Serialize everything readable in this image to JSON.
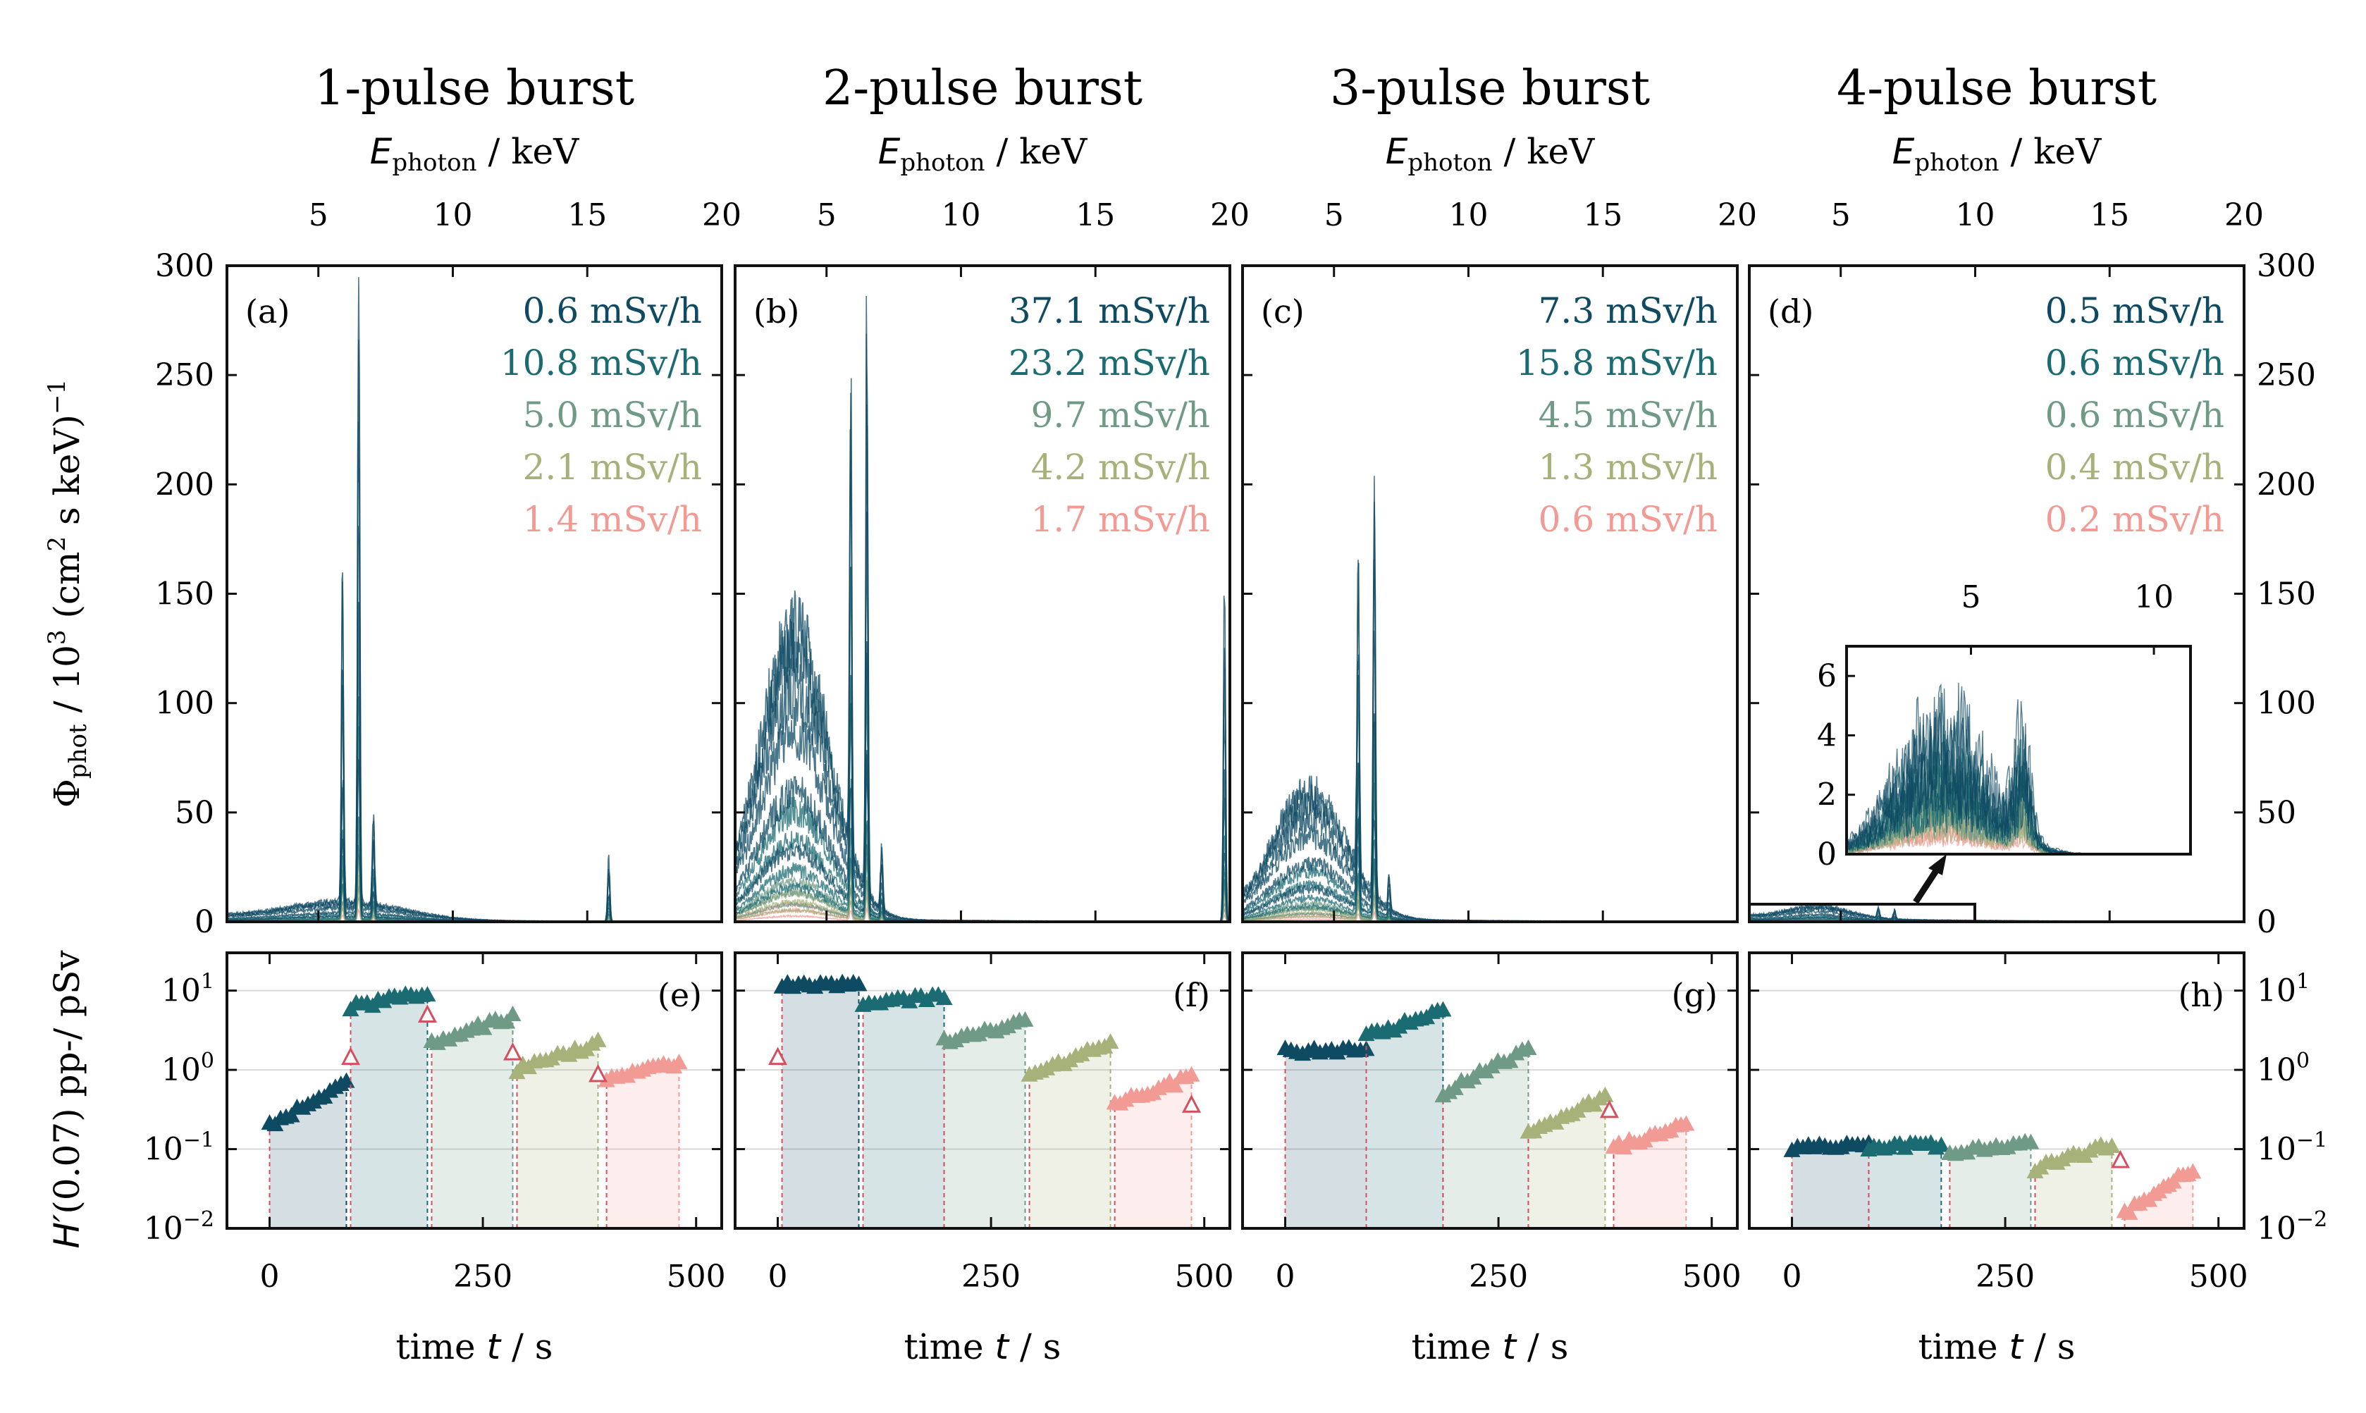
{
  "titles": [
    "1-pulse burst",
    "2-pulse burst",
    "3-pulse burst",
    "4-pulse burst"
  ],
  "top_axis_label": {
    "main": "E",
    "sub": "photon",
    "unit": " / keV"
  },
  "left_axis_label_spectrum": {
    "main": "Φ",
    "sub": "phot",
    "rest1": " / 10",
    "sup": "3",
    "rest2": " (cm",
    "sup2": "2",
    "rest3": " s keV)",
    "sup3": "−1"
  },
  "left_axis_label_dose": {
    "main": "H′",
    "rest": "(0.07) pp-/ pSv"
  },
  "bottom_axis_label": {
    "pre": "time ",
    "var": "t",
    "post": " / s"
  },
  "panel_letters_top": [
    "(a)",
    "(b)",
    "(c)",
    "(d)"
  ],
  "panel_letters_bottom": [
    "(e)",
    "(f)",
    "(g)",
    "(h)"
  ],
  "series_colors": [
    "#0f4a63",
    "#1b6b72",
    "#6e9a86",
    "#a6b27a",
    "#f29b94"
  ],
  "marker_color": "#d4505f",
  "inset": {
    "x_ticks": [
      "5",
      "10"
    ],
    "y_ticks": [
      "0",
      "2",
      "4",
      "6"
    ]
  },
  "chart_data": [
    {
      "type": "line",
      "panel": "a",
      "title": "1-pulse burst",
      "xlabel": "E_photon / keV",
      "ylabel": "Φ_phot / 10^3 (cm^2 s keV)^-1",
      "xlim": [
        1.6,
        20
      ],
      "ylim": [
        0,
        300
      ],
      "x_ticks": [
        "5",
        "10",
        "15",
        "20"
      ],
      "y_ticks": [
        "0",
        "50",
        "100",
        "150",
        "200",
        "250",
        "300"
      ],
      "dose_rates": [
        "0.6 mSv/h",
        "10.8 mSv/h",
        "5.0 mSv/h",
        "2.1 mSv/h",
        "1.4 mSv/h"
      ],
      "peaks": [
        {
          "x": 5.9,
          "y": 143
        },
        {
          "x": 6.5,
          "y": 275
        },
        {
          "x": 7.05,
          "y": 43
        },
        {
          "x": 15.8,
          "y": 28
        }
      ],
      "continuum": {
        "level": 8,
        "center": 6.0,
        "width": 3.0
      }
    },
    {
      "type": "line",
      "panel": "b",
      "title": "2-pulse burst",
      "xlabel": "E_photon / keV",
      "xlim": [
        1.6,
        20
      ],
      "ylim": [
        0,
        300
      ],
      "x_ticks": [
        "5",
        "10",
        "15",
        "20"
      ],
      "dose_rates": [
        "37.1 mSv/h",
        "23.2 mSv/h",
        "9.7 mSv/h",
        "4.2 mSv/h",
        "1.7 mSv/h"
      ],
      "peaks": [
        {
          "x": 5.9,
          "y": 207
        },
        {
          "x": 6.5,
          "y": 270
        },
        {
          "x": 7.05,
          "y": 30
        },
        {
          "x": 19.8,
          "y": 145
        }
      ],
      "continuum": {
        "level": 130,
        "center": 3.8,
        "width": 1.8
      }
    },
    {
      "type": "line",
      "panel": "c",
      "title": "3-pulse burst",
      "xlabel": "E_photon / keV",
      "xlim": [
        1.6,
        20
      ],
      "ylim": [
        0,
        300
      ],
      "x_ticks": [
        "5",
        "10",
        "15",
        "20"
      ],
      "dose_rates": [
        "7.3 mSv/h",
        "15.8 mSv/h",
        "4.5 mSv/h",
        "1.3 mSv/h",
        "0.6 mSv/h"
      ],
      "peaks": [
        {
          "x": 5.9,
          "y": 143
        },
        {
          "x": 6.5,
          "y": 197
        },
        {
          "x": 7.05,
          "y": 15
        }
      ],
      "continuum": {
        "level": 58,
        "center": 4.1,
        "width": 1.9
      }
    },
    {
      "type": "line",
      "panel": "d",
      "title": "4-pulse burst",
      "xlabel": "E_photon / keV",
      "xlim": [
        1.6,
        20
      ],
      "ylim": [
        0,
        300
      ],
      "x_ticks": [
        "5",
        "10",
        "15",
        "20"
      ],
      "y_ticks": [
        "0",
        "50",
        "100",
        "150",
        "200",
        "250",
        "300"
      ],
      "dose_rates": [
        "0.5 mSv/h",
        "0.6 mSv/h",
        "0.6 mSv/h",
        "0.4 mSv/h",
        "0.2 mSv/h"
      ],
      "peaks": [
        {
          "x": 6.4,
          "y": 4.5
        },
        {
          "x": 7.0,
          "y": 4.2
        }
      ],
      "continuum": {
        "level": 5.5,
        "center": 4.2,
        "width": 1.6
      },
      "inset": {
        "xlim": [
          1.6,
          11
        ],
        "ylim": [
          0,
          7
        ]
      }
    },
    {
      "type": "scatter",
      "panel": "e",
      "xlabel": "time t / s",
      "ylabel": "H′(0.07) pp-/ pSv",
      "xlim": [
        -50,
        530
      ],
      "yscale": "log",
      "ylim": [
        0.01,
        30
      ],
      "x_ticks": [
        "0",
        "250",
        "500"
      ],
      "y_ticks": [
        "10−2",
        "10−1",
        "100",
        "101"
      ],
      "segments": [
        {
          "t0": 0,
          "t1": 90,
          "y0": 0.2,
          "y1": 0.65
        },
        {
          "t0": 95,
          "t1": 185,
          "y0": 6,
          "y1": 9.5
        },
        {
          "t0": 190,
          "t1": 285,
          "y0": 2.2,
          "y1": 4.5
        },
        {
          "t0": 290,
          "t1": 385,
          "y0": 1.0,
          "y1": 2.1
        },
        {
          "t0": 395,
          "t1": 480,
          "y0": 0.7,
          "y1": 1.2
        }
      ],
      "open_markers": [
        {
          "t": 95,
          "y": 1.4
        },
        {
          "t": 185,
          "y": 4.8
        },
        {
          "t": 285,
          "y": 1.6
        },
        {
          "t": 385,
          "y": 0.85
        }
      ]
    },
    {
      "type": "scatter",
      "panel": "f",
      "xlabel": "time t / s",
      "xlim": [
        -50,
        530
      ],
      "yscale": "log",
      "ylim": [
        0.01,
        30
      ],
      "x_ticks": [
        "0",
        "250",
        "500"
      ],
      "segments": [
        {
          "t0": 5,
          "t1": 95,
          "y0": 11,
          "y1": 12
        },
        {
          "t0": 100,
          "t1": 195,
          "y0": 6.5,
          "y1": 8.5
        },
        {
          "t0": 195,
          "t1": 290,
          "y0": 2.2,
          "y1": 4.0
        },
        {
          "t0": 295,
          "t1": 390,
          "y0": 0.8,
          "y1": 2.1
        },
        {
          "t0": 395,
          "t1": 485,
          "y0": 0.35,
          "y1": 0.8
        }
      ],
      "open_markers": [
        {
          "t": 0,
          "y": 1.4
        },
        {
          "t": 485,
          "y": 0.35
        }
      ]
    },
    {
      "type": "scatter",
      "panel": "g",
      "xlabel": "time t / s",
      "xlim": [
        -50,
        530
      ],
      "yscale": "log",
      "ylim": [
        0.01,
        30
      ],
      "x_ticks": [
        "0",
        "250",
        "500"
      ],
      "segments": [
        {
          "t0": 0,
          "t1": 95,
          "y0": 1.7,
          "y1": 1.7
        },
        {
          "t0": 95,
          "t1": 185,
          "y0": 2.6,
          "y1": 5.2
        },
        {
          "t0": 185,
          "t1": 285,
          "y0": 0.5,
          "y1": 1.8
        },
        {
          "t0": 285,
          "t1": 375,
          "y0": 0.15,
          "y1": 0.45
        },
        {
          "t0": 385,
          "t1": 470,
          "y0": 0.1,
          "y1": 0.2
        }
      ],
      "open_markers": [
        {
          "t": 380,
          "y": 0.3
        }
      ]
    },
    {
      "type": "scatter",
      "panel": "h",
      "xlabel": "time t / s",
      "xlim": [
        -50,
        530
      ],
      "yscale": "log",
      "ylim": [
        0.01,
        30
      ],
      "x_ticks": [
        "0",
        "250",
        "500"
      ],
      "y_ticks": [
        "10−2",
        "10−1",
        "100",
        "101"
      ],
      "segments": [
        {
          "t0": 0,
          "t1": 90,
          "y0": 0.1,
          "y1": 0.11
        },
        {
          "t0": 90,
          "t1": 175,
          "y0": 0.1,
          "y1": 0.11
        },
        {
          "t0": 185,
          "t1": 280,
          "y0": 0.09,
          "y1": 0.12
        },
        {
          "t0": 285,
          "t1": 375,
          "y0": 0.055,
          "y1": 0.11
        },
        {
          "t0": 390,
          "t1": 470,
          "y0": 0.015,
          "y1": 0.055
        }
      ],
      "open_markers": [
        {
          "t": 385,
          "y": 0.07
        }
      ]
    }
  ]
}
